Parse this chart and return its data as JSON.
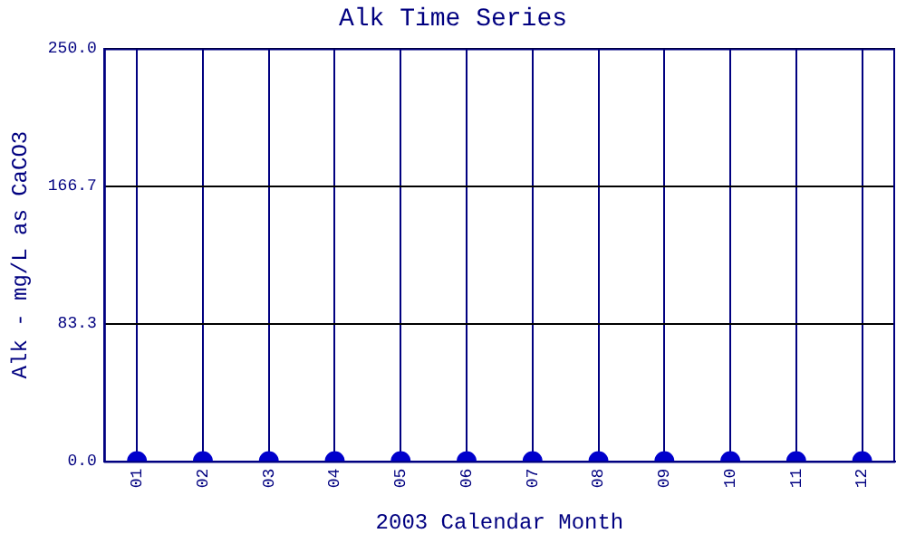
{
  "chart_data": {
    "type": "scatter",
    "title": "Alk Time Series",
    "xlabel": "2003 Calendar Month",
    "ylabel": "Alk - mg/L as CaCO3",
    "categories": [
      "01",
      "02",
      "03",
      "04",
      "05",
      "06",
      "07",
      "08",
      "09",
      "10",
      "11",
      "12"
    ],
    "series": [
      {
        "color": "#0000cc",
        "values": [
          0,
          0,
          0,
          0,
          0,
          0,
          0,
          0,
          0,
          0,
          0,
          0
        ]
      }
    ],
    "ylim": [
      0,
      250
    ],
    "yticks": [
      {
        "value": 0,
        "label": "0.0"
      },
      {
        "value": 83.3,
        "label": "83.3"
      },
      {
        "value": 166.7,
        "label": "166.7"
      },
      {
        "value": 250,
        "label": "250.0"
      }
    ],
    "grid": true,
    "legend": false,
    "marker": "circle"
  }
}
